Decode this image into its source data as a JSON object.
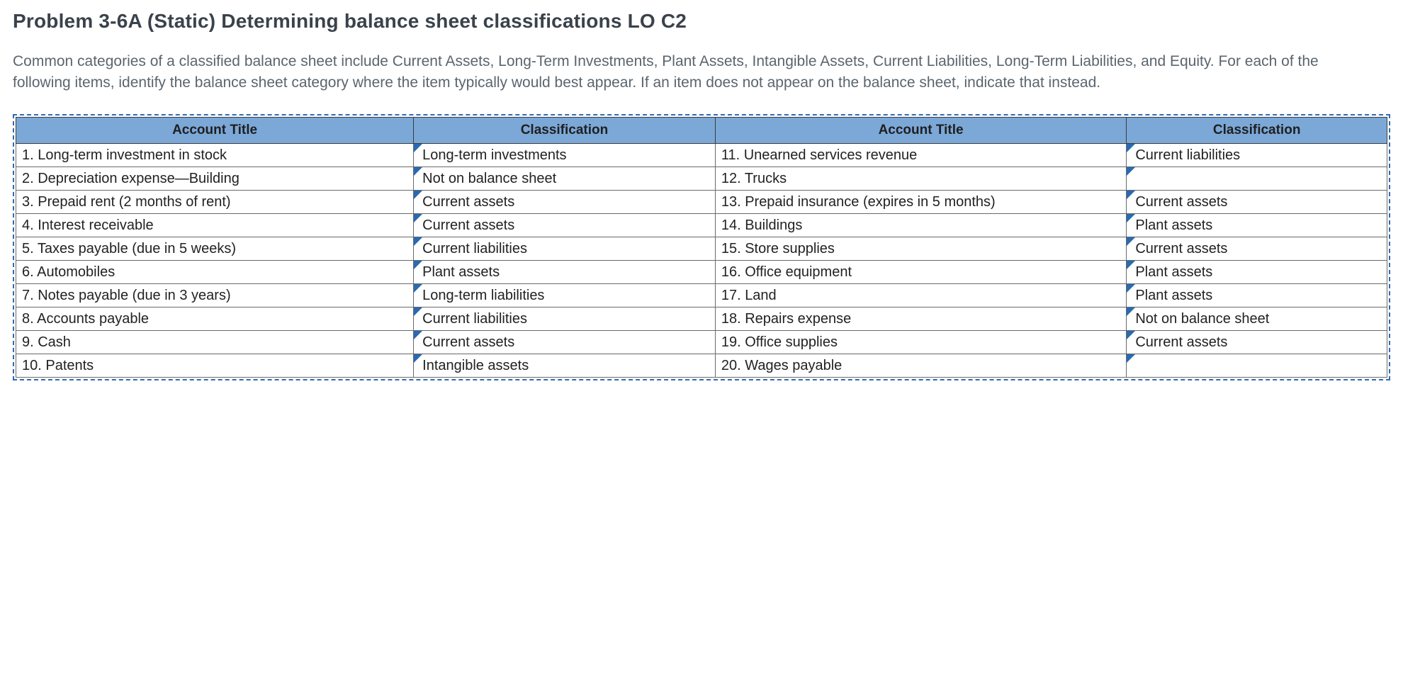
{
  "heading": "Problem 3-6A (Static) Determining balance sheet classifications LO C2",
  "intro": "Common categories of a classified balance sheet include Current Assets, Long-Term Investments, Plant Assets, Intangible Assets, Current Liabilities, Long-Term Liabilities, and Equity. For each of the following items, identify the balance sheet category where the item typically would best appear. If an item does not appear on the balance sheet, indicate that instead.",
  "table": {
    "headers": {
      "account_title": "Account Title",
      "classification": "Classification"
    },
    "header_bg": "#7ca8d8",
    "dash_border_color": "#2f6bb3",
    "dropdown_triangle_color": "#2a6ab0",
    "col_widths_pct": [
      29,
      22,
      30,
      19
    ],
    "rows": [
      {
        "left_title": "1. Long-term investment in stock",
        "left_class": "Long-term investments",
        "right_title": "11. Unearned services revenue",
        "right_class": "Current liabilities"
      },
      {
        "left_title": "2. Depreciation expense—Building",
        "left_class": "Not on balance sheet",
        "right_title": "12. Trucks",
        "right_class": ""
      },
      {
        "left_title": "3. Prepaid rent (2 months of rent)",
        "left_class": "Current assets",
        "right_title": "13. Prepaid insurance (expires in 5 months)",
        "right_class": "Current assets"
      },
      {
        "left_title": "4. Interest receivable",
        "left_class": "Current assets",
        "right_title": "14. Buildings",
        "right_class": "Plant assets"
      },
      {
        "left_title": "5. Taxes payable (due in 5 weeks)",
        "left_class": "Current liabilities",
        "right_title": "15. Store supplies",
        "right_class": "Current assets"
      },
      {
        "left_title": "6. Automobiles",
        "left_class": "Plant assets",
        "right_title": "16. Office equipment",
        "right_class": "Plant assets"
      },
      {
        "left_title": "7. Notes payable (due in 3 years)",
        "left_class": "Long-term liabilities",
        "right_title": "17. Land",
        "right_class": "Plant assets"
      },
      {
        "left_title": "8. Accounts payable",
        "left_class": "Current liabilities",
        "right_title": "18. Repairs expense",
        "right_class": "Not on balance sheet"
      },
      {
        "left_title": "9. Cash",
        "left_class": "Current assets",
        "right_title": "19. Office supplies",
        "right_class": "Current assets"
      },
      {
        "left_title": "10. Patents",
        "left_class": "Intangible assets",
        "right_title": "20. Wages payable",
        "right_class": ""
      }
    ]
  }
}
